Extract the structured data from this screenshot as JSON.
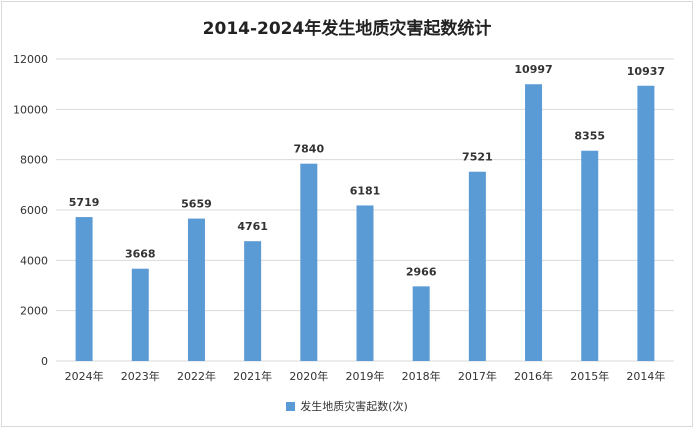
{
  "chart_data": {
    "type": "bar",
    "title": "2014-2024年发生地质灾害起数统计",
    "categories": [
      "2024年",
      "2023年",
      "2022年",
      "2021年",
      "2020年",
      "2019年",
      "2018年",
      "2017年",
      "2016年",
      "2015年",
      "2014年"
    ],
    "series": [
      {
        "name": "发生地质灾害起数(次)",
        "values": [
          5719,
          3668,
          5659,
          4761,
          7840,
          6181,
          2966,
          7521,
          10997,
          8355,
          10937
        ]
      }
    ],
    "ylim": [
      0,
      12000
    ],
    "yticks": [
      0,
      2000,
      4000,
      6000,
      8000,
      10000,
      12000
    ],
    "grid": true,
    "legend_position": "bottom",
    "bar_color": "#5b9bd5",
    "grid_color": "#d9d9d9"
  }
}
